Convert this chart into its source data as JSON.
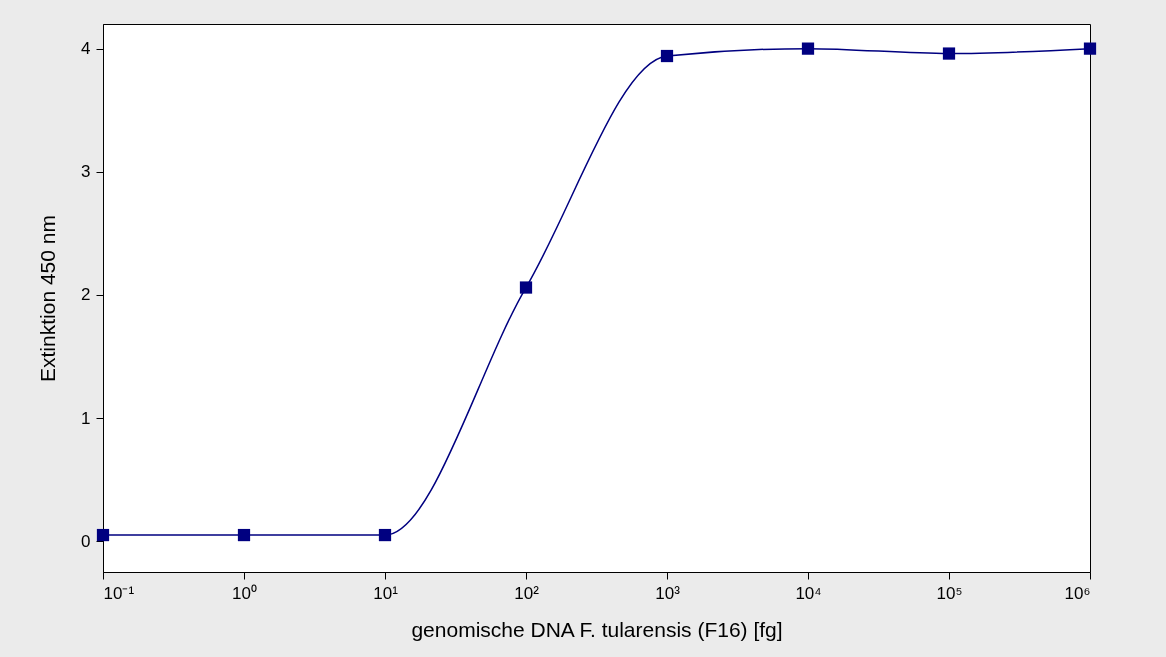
{
  "chart_data": {
    "type": "line",
    "xlabel": "genomische DNA F. tularensis (F16) [fg]",
    "ylabel": "Extinktion 450 nm",
    "x": [
      0.1,
      1,
      10,
      100,
      1000,
      10000,
      100000,
      1000000
    ],
    "series": [
      {
        "color": "#000080",
        "values": [
          0.05,
          0.05,
          0.05,
          2.06,
          3.94,
          4.0,
          3.96,
          4.0
        ]
      }
    ],
    "log": "x",
    "xlim": [
      0.1,
      1000000
    ],
    "ylim": [
      -0.25,
      4.2
    ],
    "xticks": [
      {
        "value": 0.1,
        "label": "10⁻¹"
      },
      {
        "value": 1,
        "label": "10⁰"
      },
      {
        "value": 10,
        "label": "10¹"
      },
      {
        "value": 100,
        "label": "10²"
      },
      {
        "value": 1000,
        "label": "10³"
      },
      {
        "value": 10000,
        "label": "10⁴"
      },
      {
        "value": 100000,
        "label": "10⁵"
      },
      {
        "value": 1000000,
        "label": "10⁶"
      }
    ],
    "yticks": [
      0,
      1,
      2,
      3,
      4
    ],
    "grid": false,
    "legend": false,
    "marker": "square",
    "line_style": "solid"
  }
}
